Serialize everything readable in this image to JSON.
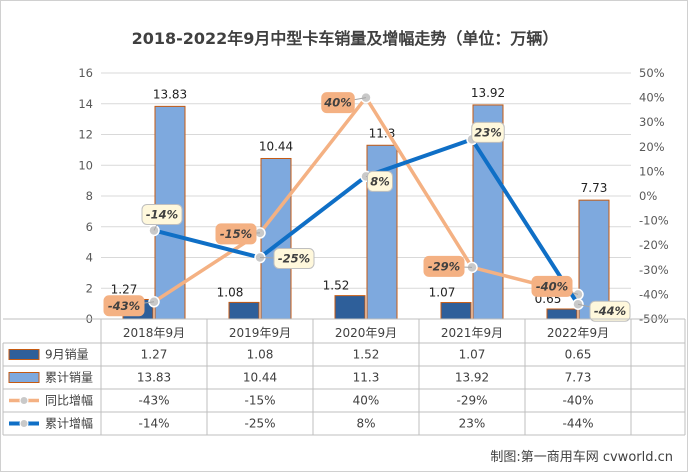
{
  "title": "2018-2022年9月中型卡车销量及增幅走势（单位：万辆）",
  "watermark": "制图:第一商用车网 cvworld.cn",
  "chart_data": {
    "type": "bar",
    "title": "2018-2022年9月中型卡车销量及增幅走势（单位：万辆）",
    "categories": [
      "2018年9月",
      "2019年9月",
      "2020年9月",
      "2021年9月",
      "2022年9月"
    ],
    "left_axis": {
      "ylim": [
        0,
        16
      ],
      "ticks": [
        "0",
        "2",
        "4",
        "6",
        "8",
        "10",
        "12",
        "14",
        "16"
      ]
    },
    "right_axis": {
      "ylim": [
        -50,
        50
      ],
      "ticks": [
        "-50%",
        "-40%",
        "-30%",
        "-20%",
        "-10%",
        "0%",
        "10%",
        "20%",
        "30%",
        "40%",
        "50%"
      ]
    },
    "series": [
      {
        "name": "9月销量",
        "type": "bar",
        "axis": "left",
        "values": [
          1.27,
          1.08,
          1.52,
          1.07,
          0.65
        ],
        "labels": [
          "1.27",
          "1.08",
          "1.52",
          "1.07",
          "0.65"
        ],
        "color": "#2e5f9a"
      },
      {
        "name": "累计销量",
        "type": "bar",
        "axis": "left",
        "values": [
          13.83,
          10.44,
          11.3,
          13.92,
          7.73
        ],
        "labels": [
          "13.83",
          "10.44",
          "11.3",
          "13.92",
          "7.73"
        ],
        "color": "#7ea9de"
      },
      {
        "name": "同比增幅",
        "type": "line",
        "axis": "right",
        "values": [
          -43,
          -15,
          40,
          -29,
          -40
        ],
        "labels": [
          "-43%",
          "-15%",
          "40%",
          "-29%",
          "-40%"
        ],
        "color": "#f4b183"
      },
      {
        "name": "累计增幅",
        "type": "line",
        "axis": "right",
        "values": [
          -14,
          -25,
          8,
          23,
          -44
        ],
        "labels": [
          "-14%",
          "-25%",
          "8%",
          "23%",
          "-44%"
        ],
        "color": "#0f6fc6"
      }
    ]
  },
  "table": {
    "rows": [
      {
        "legend": "9月销量",
        "cells": [
          "1.27",
          "1.08",
          "1.52",
          "1.07",
          "0.65"
        ]
      },
      {
        "legend": "累计销量",
        "cells": [
          "13.83",
          "10.44",
          "11.3",
          "13.92",
          "7.73"
        ]
      },
      {
        "legend": "同比增幅",
        "cells": [
          "-43%",
          "-15%",
          "40%",
          "-29%",
          "-40%"
        ]
      },
      {
        "legend": "累计增幅",
        "cells": [
          "-14%",
          "-25%",
          "8%",
          "23%",
          "-44%"
        ]
      }
    ]
  }
}
